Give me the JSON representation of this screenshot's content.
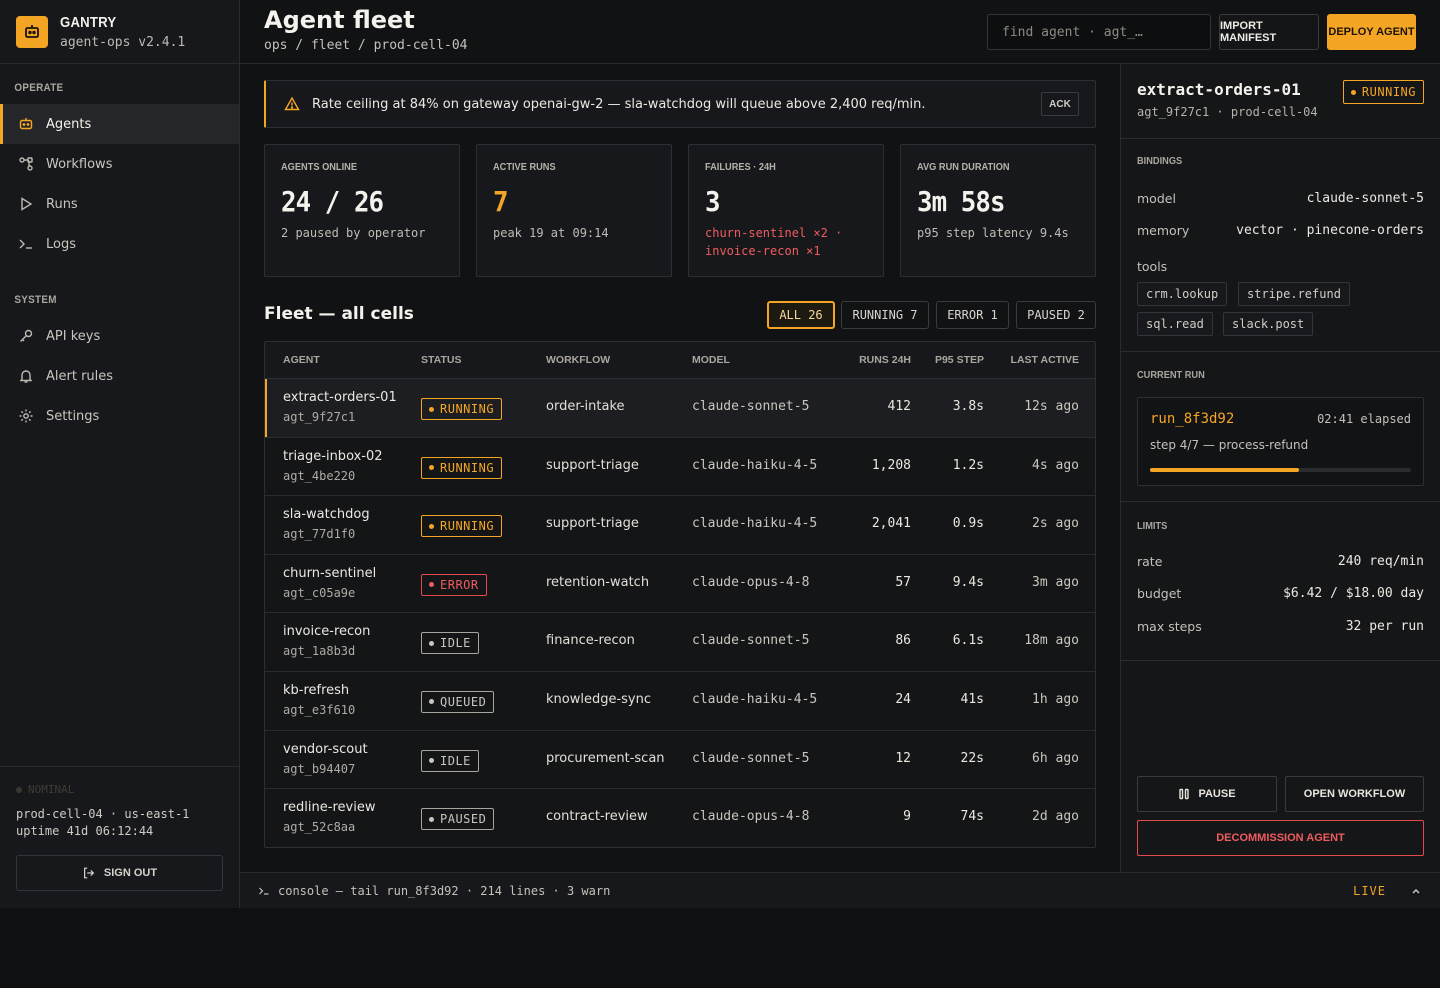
{
  "app": {
    "name": "GANTRY",
    "version": "agent-ops v2.4.1"
  },
  "sidebar": {
    "operate_label": "Operate",
    "system_label": "System",
    "operate_items": [
      {
        "label": "Agents",
        "icon": "robot-icon",
        "active": true
      },
      {
        "label": "Workflows",
        "icon": "workflow-icon",
        "active": false
      },
      {
        "label": "Runs",
        "icon": "play-icon",
        "active": false
      },
      {
        "label": "Logs",
        "icon": "terminal-icon",
        "active": false
      }
    ],
    "system_items": [
      {
        "label": "API keys",
        "icon": "key-icon"
      },
      {
        "label": "Alert rules",
        "icon": "bell-icon"
      },
      {
        "label": "Settings",
        "icon": "gear-icon"
      }
    ],
    "footer": {
      "status": "NOMINAL",
      "env": "prod-cell-04 · us-east-1",
      "uptime": "uptime 41d 06:12:44",
      "sign_out": "Sign out"
    }
  },
  "header": {
    "title": "Agent fleet",
    "breadcrumb": "ops / fleet / prod-cell-04",
    "search_placeholder": "find agent · agt_…",
    "import_label": "Import manifest",
    "deploy_label": "Deploy agent"
  },
  "alert": {
    "text": "Rate ceiling at 84% on gateway openai-gw-2 — sla-watchdog will queue above 2,400 req/min.",
    "ack": "ACK"
  },
  "stats": [
    {
      "label": "Agents online",
      "value": "24 / 26",
      "sub": "2 paused by operator",
      "accent": false
    },
    {
      "label": "Active runs",
      "value": "7",
      "sub": "peak 19 at 09:14",
      "accent": true
    },
    {
      "label": "Failures · 24h",
      "value": "3",
      "sub": "churn-sentinel ×2 · invoice-recon ×1",
      "accent": false,
      "sub_error": true
    },
    {
      "label": "Avg run duration",
      "value": "3m 58s",
      "sub": "p95 step latency 9.4s",
      "accent": false
    }
  ],
  "fleet": {
    "title": "Fleet — all cells",
    "filters": [
      {
        "label": "ALL 26",
        "active": true
      },
      {
        "label": "RUNNING 7",
        "active": false
      },
      {
        "label": "ERROR 1",
        "active": false
      },
      {
        "label": "PAUSED 2",
        "active": false
      }
    ],
    "columns": [
      "Agent",
      "Status",
      "Workflow",
      "Model",
      "Runs 24h",
      "P95 step",
      "Last active"
    ],
    "rows": [
      {
        "name": "extract-orders-01",
        "id": "agt_9f27c1",
        "status": "RUNNING",
        "workflow": "order-intake",
        "model": "claude-sonnet-5",
        "runs": "412",
        "p95": "3.8s",
        "last": "12s ago",
        "selected": true
      },
      {
        "name": "triage-inbox-02",
        "id": "agt_4be220",
        "status": "RUNNING",
        "workflow": "support-triage",
        "model": "claude-haiku-4-5",
        "runs": "1,208",
        "p95": "1.2s",
        "last": "4s ago"
      },
      {
        "name": "sla-watchdog",
        "id": "agt_77d1f0",
        "status": "RUNNING",
        "workflow": "support-triage",
        "model": "claude-haiku-4-5",
        "runs": "2,041",
        "p95": "0.9s",
        "last": "2s ago"
      },
      {
        "name": "churn-sentinel",
        "id": "agt_c05a9e",
        "status": "ERROR",
        "workflow": "retention-watch",
        "model": "claude-opus-4-8",
        "runs": "57",
        "p95": "9.4s",
        "last": "3m ago"
      },
      {
        "name": "invoice-recon",
        "id": "agt_1a8b3d",
        "status": "IDLE",
        "workflow": "finance-recon",
        "model": "claude-sonnet-5",
        "runs": "86",
        "p95": "6.1s",
        "last": "18m ago"
      },
      {
        "name": "kb-refresh",
        "id": "agt_e3f610",
        "status": "QUEUED",
        "workflow": "knowledge-sync",
        "model": "claude-haiku-4-5",
        "runs": "24",
        "p95": "41s",
        "last": "1h ago"
      },
      {
        "name": "vendor-scout",
        "id": "agt_b94407",
        "status": "IDLE",
        "workflow": "procurement-scan",
        "model": "claude-sonnet-5",
        "runs": "12",
        "p95": "22s",
        "last": "6h ago"
      },
      {
        "name": "redline-review",
        "id": "agt_52c8aa",
        "status": "PAUSED",
        "workflow": "contract-review",
        "model": "claude-opus-4-8",
        "runs": "9",
        "p95": "74s",
        "last": "2d ago"
      }
    ]
  },
  "console": {
    "text": "console — tail run_8f3d92 · 214 lines · 3 warn",
    "live": "LIVE"
  },
  "detail": {
    "name": "extract-orders-01",
    "status": "RUNNING",
    "meta": "agt_9f27c1 · prod-cell-04",
    "bindings_label": "Bindings",
    "model_key": "model",
    "model_val": "claude-sonnet-5",
    "memory_key": "memory",
    "memory_val": "vector · pinecone-orders",
    "tools_key": "tools",
    "tools": [
      "crm.lookup",
      "stripe.refund",
      "sql.read",
      "slack.post"
    ],
    "current_run_label": "Current run",
    "run_id": "run_8f3d92",
    "elapsed": "02:41 elapsed",
    "step": "step 4/7 — process-refund",
    "progress": 0.57,
    "limits_label": "Limits",
    "limits": [
      {
        "k": "rate",
        "v": "240 req/min"
      },
      {
        "k": "budget",
        "v": "$6.42 / $18.00 day"
      },
      {
        "k": "max steps",
        "v": "32 per run"
      }
    ],
    "pause_label": "Pause",
    "open_label": "Open workflow",
    "decommission_label": "Decommission agent"
  },
  "colors": {
    "accent": "#f5a524",
    "error": "#ef5c5f",
    "bg": "#0f1012"
  }
}
